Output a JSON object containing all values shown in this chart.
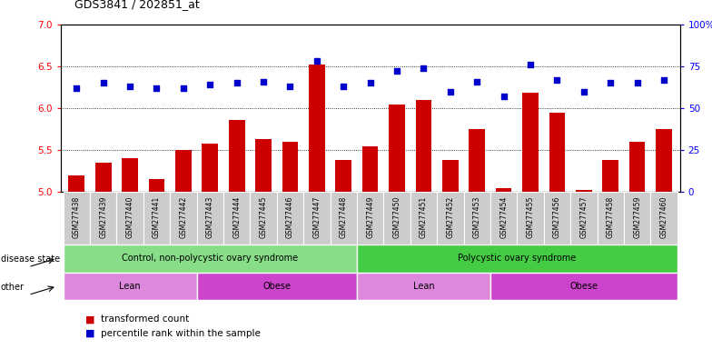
{
  "title": "GDS3841 / 202851_at",
  "samples": [
    "GSM277438",
    "GSM277439",
    "GSM277440",
    "GSM277441",
    "GSM277442",
    "GSM277443",
    "GSM277444",
    "GSM277445",
    "GSM277446",
    "GSM277447",
    "GSM277448",
    "GSM277449",
    "GSM277450",
    "GSM277451",
    "GSM277452",
    "GSM277453",
    "GSM277454",
    "GSM277455",
    "GSM277456",
    "GSM277457",
    "GSM277458",
    "GSM277459",
    "GSM277460"
  ],
  "transformed_count": [
    5.2,
    5.35,
    5.4,
    5.15,
    5.5,
    5.58,
    5.86,
    5.63,
    5.6,
    6.52,
    5.38,
    5.54,
    6.04,
    6.1,
    5.38,
    5.75,
    5.05,
    6.18,
    5.95,
    5.02,
    5.38,
    5.6,
    5.75
  ],
  "percentile_rank": [
    62,
    65,
    63,
    62,
    62,
    64,
    65,
    66,
    63,
    78,
    63,
    65,
    72,
    74,
    60,
    66,
    57,
    76,
    67,
    60,
    65,
    65,
    67
  ],
  "ylim_left": [
    5.0,
    7.0
  ],
  "ylim_right": [
    0,
    100
  ],
  "yticks_left": [
    5.0,
    5.5,
    6.0,
    6.5,
    7.0
  ],
  "yticks_right": [
    0,
    25,
    50,
    75,
    100
  ],
  "ytick_labels_right": [
    "0",
    "25",
    "50",
    "75",
    "100%"
  ],
  "bar_color": "#cc0000",
  "dot_color": "#0000cc",
  "disease_state_groups": [
    {
      "label": "Control, non-polycystic ovary syndrome",
      "start": 0,
      "end": 11,
      "color": "#88dd88"
    },
    {
      "label": "Polycystic ovary syndrome",
      "start": 11,
      "end": 23,
      "color": "#44cc44"
    }
  ],
  "other_groups": [
    {
      "label": "Lean",
      "start": 0,
      "end": 5,
      "color": "#dd88dd"
    },
    {
      "label": "Obese",
      "start": 5,
      "end": 11,
      "color": "#cc44cc"
    },
    {
      "label": "Lean",
      "start": 11,
      "end": 16,
      "color": "#dd88dd"
    },
    {
      "label": "Obese",
      "start": 16,
      "end": 23,
      "color": "#cc44cc"
    }
  ],
  "disease_state_label": "disease state",
  "other_label": "other",
  "legend_bar_label": "transformed count",
  "legend_dot_label": "percentile rank within the sample",
  "background_color": "#ffffff"
}
